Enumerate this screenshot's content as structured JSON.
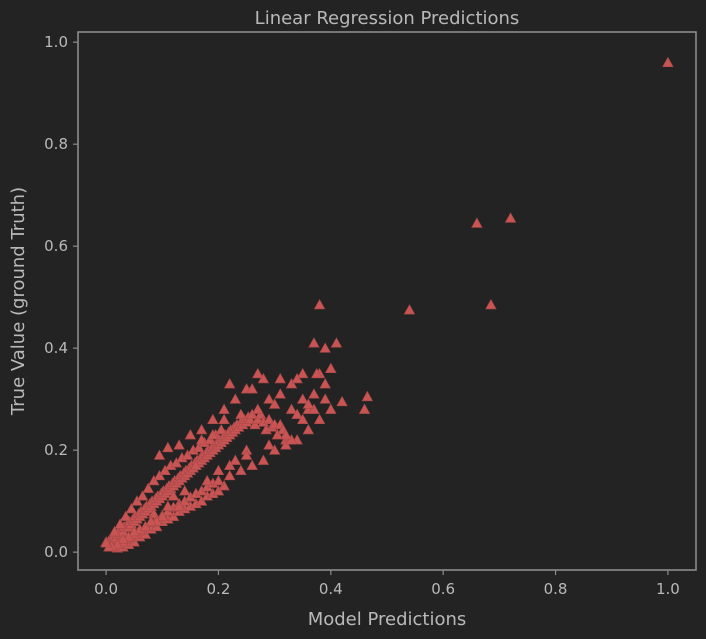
{
  "chart_data": {
    "type": "scatter",
    "title": "Linear Regression Predictions",
    "xlabel": "Model Predictions",
    "ylabel": "True Value (ground Truth)",
    "xlim": [
      -0.05,
      1.05
    ],
    "ylim": [
      -0.035,
      1.02
    ],
    "xticks": [
      0.0,
      0.2,
      0.4,
      0.6,
      0.8,
      1.0
    ],
    "yticks": [
      0.0,
      0.2,
      0.4,
      0.6,
      0.8,
      1.0
    ],
    "x_tick_labels": [
      "0.0",
      "0.2",
      "0.4",
      "0.6",
      "0.8",
      "1.0"
    ],
    "y_tick_labels": [
      "0.0",
      "0.2",
      "0.4",
      "0.6",
      "0.8",
      "1.0"
    ],
    "grid": false,
    "marker": "triangle",
    "marker_color": "#c95454",
    "background_color": "#232323",
    "text_color": "#b9b9b9",
    "x": [
      0.0,
      0.005,
      0.01,
      0.012,
      0.015,
      0.018,
      0.02,
      0.022,
      0.025,
      0.028,
      0.03,
      0.032,
      0.035,
      0.038,
      0.04,
      0.042,
      0.045,
      0.048,
      0.05,
      0.052,
      0.055,
      0.058,
      0.06,
      0.062,
      0.065,
      0.068,
      0.07,
      0.072,
      0.075,
      0.078,
      0.08,
      0.082,
      0.085,
      0.088,
      0.09,
      0.092,
      0.095,
      0.098,
      0.1,
      0.102,
      0.105,
      0.108,
      0.11,
      0.112,
      0.115,
      0.118,
      0.12,
      0.122,
      0.125,
      0.128,
      0.13,
      0.132,
      0.135,
      0.138,
      0.14,
      0.142,
      0.145,
      0.148,
      0.15,
      0.152,
      0.155,
      0.158,
      0.16,
      0.162,
      0.165,
      0.168,
      0.17,
      0.172,
      0.175,
      0.178,
      0.18,
      0.182,
      0.185,
      0.188,
      0.19,
      0.192,
      0.195,
      0.198,
      0.2,
      0.202,
      0.205,
      0.208,
      0.21,
      0.212,
      0.215,
      0.218,
      0.22,
      0.222,
      0.225,
      0.228,
      0.23,
      0.233,
      0.236,
      0.24,
      0.243,
      0.246,
      0.25,
      0.253,
      0.256,
      0.26,
      0.265,
      0.27,
      0.275,
      0.28,
      0.285,
      0.29,
      0.295,
      0.3,
      0.305,
      0.31,
      0.315,
      0.32,
      0.33,
      0.34,
      0.35,
      0.36,
      0.37,
      0.38,
      0.39,
      0.4,
      0.02,
      0.03,
      0.04,
      0.05,
      0.06,
      0.07,
      0.08,
      0.09,
      0.1,
      0.11,
      0.12,
      0.13,
      0.14,
      0.15,
      0.16,
      0.17,
      0.18,
      0.19,
      0.2,
      0.21,
      0.015,
      0.025,
      0.035,
      0.045,
      0.055,
      0.065,
      0.075,
      0.085,
      0.095,
      0.105,
      0.115,
      0.125,
      0.135,
      0.145,
      0.155,
      0.165,
      0.175,
      0.185,
      0.195,
      0.205,
      0.01,
      0.02,
      0.03,
      0.04,
      0.05,
      0.06,
      0.07,
      0.08,
      0.09,
      0.1,
      0.11,
      0.12,
      0.13,
      0.14,
      0.15,
      0.16,
      0.17,
      0.18,
      0.19,
      0.2,
      0.22,
      0.24,
      0.26,
      0.28,
      0.3,
      0.32,
      0.34,
      0.36,
      0.38,
      0.4,
      0.095,
      0.11,
      0.13,
      0.15,
      0.17,
      0.19,
      0.21,
      0.23,
      0.25,
      0.27,
      0.29,
      0.31,
      0.33,
      0.35,
      0.37,
      0.39,
      0.41,
      0.375,
      0.39,
      0.4,
      0.42,
      0.46,
      0.465,
      0.54,
      0.66,
      0.685,
      0.72,
      0.38,
      0.37,
      1.0,
      0.28,
      0.31,
      0.3,
      0.26,
      0.27,
      0.24,
      0.22,
      0.25,
      0.2,
      0.23,
      0.18,
      0.19,
      0.17,
      0.16,
      0.21,
      0.14,
      0.12,
      0.11,
      0.36,
      0.34,
      0.33,
      0.35,
      0.32,
      0.29,
      0.25,
      0.22,
      0.1,
      0.085,
      0.09,
      0.13,
      0.06,
      0.05,
      0.04,
      0.07,
      0.08,
      0.03,
      0.02,
      0.01,
      0.005,
      0.0
    ],
    "y": [
      0.02,
      0.022,
      0.025,
      0.03,
      0.032,
      0.028,
      0.035,
      0.04,
      0.038,
      0.045,
      0.04,
      0.05,
      0.048,
      0.055,
      0.05,
      0.06,
      0.055,
      0.065,
      0.06,
      0.07,
      0.065,
      0.075,
      0.07,
      0.08,
      0.075,
      0.085,
      0.08,
      0.09,
      0.085,
      0.095,
      0.09,
      0.1,
      0.095,
      0.105,
      0.1,
      0.11,
      0.105,
      0.115,
      0.11,
      0.12,
      0.115,
      0.125,
      0.12,
      0.13,
      0.125,
      0.135,
      0.13,
      0.14,
      0.135,
      0.145,
      0.14,
      0.15,
      0.145,
      0.155,
      0.15,
      0.16,
      0.155,
      0.165,
      0.16,
      0.17,
      0.165,
      0.175,
      0.17,
      0.18,
      0.175,
      0.185,
      0.18,
      0.19,
      0.185,
      0.195,
      0.19,
      0.2,
      0.195,
      0.205,
      0.2,
      0.21,
      0.205,
      0.215,
      0.21,
      0.22,
      0.215,
      0.225,
      0.22,
      0.23,
      0.225,
      0.235,
      0.23,
      0.24,
      0.235,
      0.245,
      0.24,
      0.25,
      0.245,
      0.255,
      0.25,
      0.26,
      0.255,
      0.265,
      0.26,
      0.27,
      0.25,
      0.26,
      0.27,
      0.255,
      0.24,
      0.26,
      0.245,
      0.25,
      0.23,
      0.25,
      0.24,
      0.22,
      0.28,
      0.27,
      0.3,
      0.28,
      0.31,
      0.35,
      0.33,
      0.36,
      0.008,
      0.01,
      0.015,
      0.02,
      0.03,
      0.035,
      0.045,
      0.05,
      0.06,
      0.065,
      0.07,
      0.08,
      0.085,
      0.09,
      0.095,
      0.1,
      0.11,
      0.115,
      0.12,
      0.13,
      0.04,
      0.055,
      0.07,
      0.085,
      0.1,
      0.11,
      0.125,
      0.14,
      0.15,
      0.16,
      0.17,
      0.175,
      0.185,
      0.19,
      0.2,
      0.205,
      0.215,
      0.22,
      0.23,
      0.24,
      0.01,
      0.015,
      0.02,
      0.028,
      0.035,
      0.042,
      0.05,
      0.058,
      0.065,
      0.072,
      0.08,
      0.088,
      0.095,
      0.1,
      0.108,
      0.115,
      0.12,
      0.128,
      0.135,
      0.14,
      0.15,
      0.16,
      0.17,
      0.18,
      0.2,
      0.21,
      0.22,
      0.24,
      0.26,
      0.28,
      0.19,
      0.205,
      0.21,
      0.23,
      0.24,
      0.26,
      0.28,
      0.3,
      0.32,
      0.35,
      0.3,
      0.34,
      0.33,
      0.35,
      0.28,
      0.3,
      0.41,
      0.35,
      0.4,
      0.36,
      0.295,
      0.28,
      0.305,
      0.475,
      0.645,
      0.485,
      0.655,
      0.485,
      0.41,
      0.96,
      0.34,
      0.31,
      0.29,
      0.32,
      0.28,
      0.27,
      0.33,
      0.2,
      0.16,
      0.18,
      0.14,
      0.23,
      0.22,
      0.17,
      0.26,
      0.12,
      0.11,
      0.09,
      0.29,
      0.34,
      0.22,
      0.26,
      0.23,
      0.21,
      0.19,
      0.17,
      0.07,
      0.075,
      0.06,
      0.09,
      0.045,
      0.04,
      0.03,
      0.05,
      0.06,
      0.025,
      0.015,
      0.012,
      0.01,
      0.018
    ]
  }
}
